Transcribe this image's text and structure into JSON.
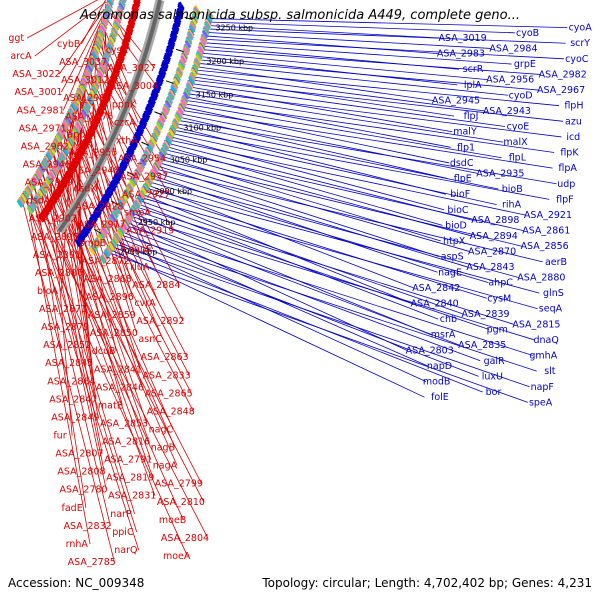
{
  "title": "Aeromonas salmonicida subsp. salmonicida A449, complete geno...",
  "footer": {
    "accession": "Accession: NC_009348",
    "summary": "Topology: circular; Length: 4,702,402 bp; Genes: 4,231"
  },
  "colors": {
    "forward": "#e00000",
    "reverse": "#0000cc",
    "backbone": "#888888",
    "ticks": "#006600"
  },
  "ticks": [
    "3250 kbp",
    "3200 kbp",
    "3150 kbp",
    "3100 kbp",
    "3050 kbp",
    "3000 kbp",
    "2950 kbp",
    "2900 kbp"
  ],
  "red_labels": [
    "ggt",
    "cybB",
    "cysK",
    "arcA",
    "ASA_3037",
    "ASA_3027",
    "ASA_3022",
    "ASA_3012",
    "ASA_3004",
    "ASA_3001",
    "ASA_2989",
    "ppnK",
    "ASA_2981",
    "ASA_2976",
    "czcA",
    "ASA_2971",
    "apbE",
    "xthA",
    "ASA_2962",
    "ASA_2955",
    "ASA_2954",
    "ASA_2946",
    "ASA_2948",
    "ASA_2937",
    "ASA_2949",
    "dsdX",
    "ASA_2927",
    "dsdA",
    "ASA_2928",
    "smpA",
    "ASA_2902",
    "ASA_2917",
    "ASA_2919",
    "ASA_2895",
    "smpB",
    "dapE",
    "ASA_2891",
    "ASA_2872",
    "rluA",
    "ASA_2886",
    "ASA_2868",
    "ASA_2884",
    "bioA",
    "ASA_2896",
    "cvrA",
    "ASA_2871",
    "ASA_2859",
    "ASA_2892",
    "ASA_2879",
    "ASA_2850",
    "asnC",
    "ASA_2852",
    "dcuB",
    "ASA_2863",
    "ASA_2845",
    "ASA_2841",
    "ASA_2833",
    "ASA_2864",
    "ASA_2846",
    "ASA_2865",
    "ASA_2847",
    "matE",
    "ASA_2848",
    "ASA_2849",
    "ASA_2853",
    "nagC",
    "fur",
    "ASA_2816",
    "nagB",
    "ASA_2807",
    "ASA_2791",
    "nagA",
    "ASA_2808",
    "ASA_2819",
    "ASA_2799",
    "ASA_2780",
    "ASA_2831",
    "ASA_2810",
    "fadE",
    "narP",
    "moeB",
    "ASA_2832",
    "ppiC",
    "ASA_2804",
    "rnhA",
    "narQ",
    "moeA",
    "ASA_2785"
  ],
  "blue_labels": [
    "cyoA",
    "cyoB",
    "ASA_3019",
    "scrY",
    "ASA_2984",
    "ASA_2983",
    "cyoC",
    "grpE",
    "scrR",
    "ASA_2982",
    "ASA_2956",
    "lplA",
    "ASA_2967",
    "cyoD",
    "ASA_2945",
    "flpH",
    "ASA_2943",
    "flpJ",
    "azu",
    "cyoE",
    "malY",
    "icd",
    "malX",
    "flp1",
    "flpK",
    "flpL",
    "dsdC",
    "flpA",
    "ASA_2935",
    "flpE",
    "udp",
    "bioB",
    "bioF",
    "flpF",
    "rihA",
    "bioC",
    "ASA_2921",
    "ASA_2898",
    "bioD",
    "ASA_2861",
    "ASA_2894",
    "htpX",
    "ASA_2856",
    "ASA_2870",
    "aspS",
    "aerB",
    "ASA_2843",
    "nagE",
    "ASA_2880",
    "ahpC",
    "ASA_2842",
    "glnS",
    "cysM",
    "ASA_2840",
    "seqA",
    "ASA_2839",
    "chb",
    "ASA_2815",
    "pgm",
    "msrA",
    "dnaQ",
    "ASA_2835",
    "ASA_2803",
    "gmhA",
    "galR",
    "napD",
    "slt",
    "luxU",
    "modB",
    "napF",
    "bor",
    "folE",
    "speA"
  ]
}
